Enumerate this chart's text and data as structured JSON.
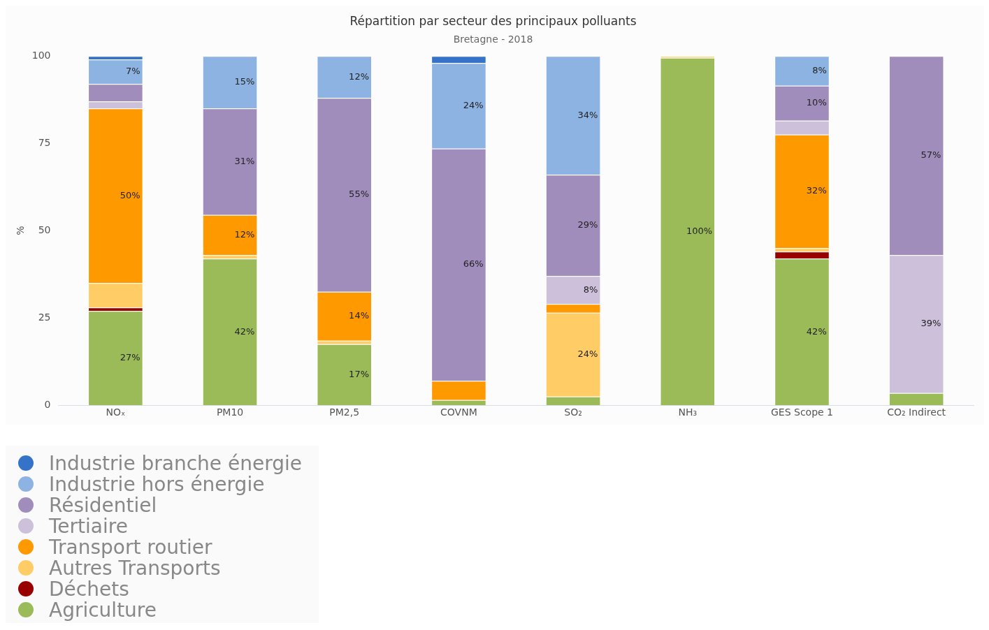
{
  "chart_data": {
    "type": "bar",
    "title": "Répartition par secteur des principaux polluants",
    "subtitle": "Bretagne - 2018",
    "ylabel": "%",
    "stacked": true,
    "legend": "bottom",
    "grid": false,
    "categories": [
      "NOₓ",
      "PM10",
      "PM2,5",
      "COVNM",
      "SO₂",
      "NH₃",
      "GES Scope 1",
      "CO₂ Indirect"
    ],
    "ylim": [
      0,
      100
    ],
    "yticks": [
      0,
      25,
      50,
      75,
      100
    ],
    "series": [
      {
        "name": "Agriculture",
        "color": "#9bbb59",
        "values": [
          27,
          42,
          17.5,
          1.5,
          2.5,
          99.5,
          42,
          3.5
        ],
        "value_labels": [
          "27%",
          "42%",
          "17%",
          null,
          null,
          "100%",
          "42%",
          null
        ]
      },
      {
        "name": "Déchets",
        "color": "#990000",
        "values": [
          1,
          null,
          null,
          null,
          null,
          null,
          2,
          null
        ],
        "value_labels": [
          null,
          null,
          null,
          null,
          null,
          null,
          null,
          null
        ]
      },
      {
        "name": "Autres Transports",
        "color": "#ffcc66",
        "values": [
          7,
          1,
          1,
          null,
          24,
          0.5,
          1,
          null
        ],
        "value_labels": [
          null,
          null,
          null,
          null,
          "24%",
          null,
          null,
          null
        ]
      },
      {
        "name": "Transport routier",
        "color": "#ff9900",
        "values": [
          50,
          11.5,
          14,
          5.5,
          2.5,
          null,
          32.5,
          null
        ],
        "value_labels": [
          "50%",
          "12%",
          "14%",
          null,
          null,
          null,
          "32%",
          null
        ]
      },
      {
        "name": "Tertiaire",
        "color": "#ccc0da",
        "values": [
          2,
          null,
          null,
          null,
          8,
          null,
          4,
          39.5
        ],
        "value_labels": [
          null,
          null,
          null,
          null,
          "8%",
          null,
          null,
          "39%"
        ]
      },
      {
        "name": "Résidentiel",
        "color": "#a18dbb",
        "values": [
          5,
          30.5,
          55.5,
          66.5,
          29,
          null,
          10,
          57
        ],
        "value_labels": [
          null,
          "31%",
          "55%",
          "66%",
          "29%",
          null,
          "10%",
          "57%"
        ]
      },
      {
        "name": "Industrie hors énergie",
        "color": "#8db3e2",
        "values": [
          7,
          15,
          12,
          24.5,
          34,
          null,
          8.5,
          null
        ],
        "value_labels": [
          "7%",
          "15%",
          "12%",
          "24%",
          "34%",
          null,
          "8%",
          null
        ]
      },
      {
        "name": "Industrie branche énergie",
        "color": "#3473c8",
        "values": [
          1,
          null,
          null,
          2,
          null,
          null,
          null,
          null
        ],
        "value_labels": [
          null,
          null,
          null,
          null,
          null,
          null,
          null,
          null
        ]
      }
    ]
  }
}
